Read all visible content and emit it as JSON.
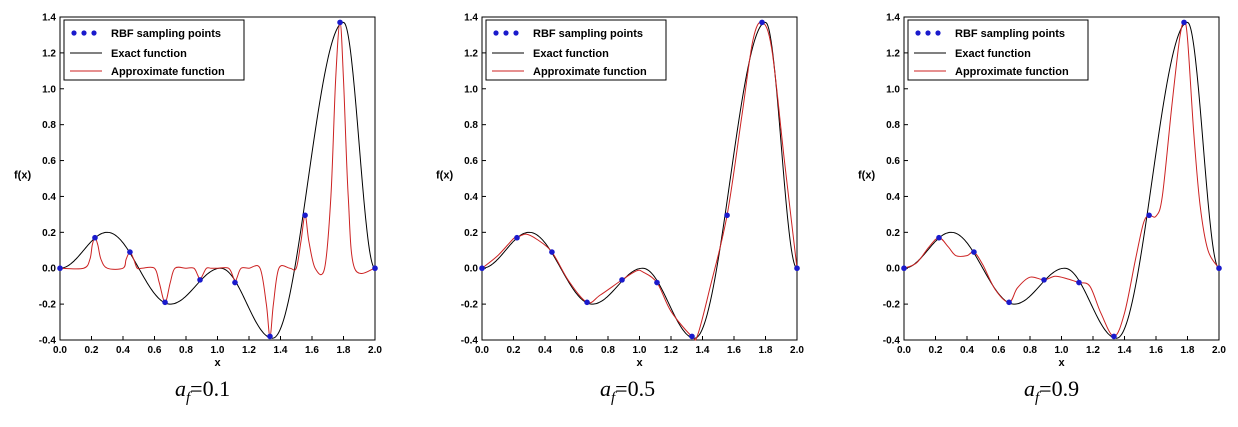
{
  "chart_data": [
    {
      "type": "line",
      "caption": {
        "symbol": "a",
        "subscript": "f",
        "value": "=0.1"
      },
      "xlabel": "x",
      "ylabel": "f(x)",
      "xlim": [
        0.0,
        2.0
      ],
      "ylim": [
        -0.4,
        1.4
      ],
      "xticks": [
        "0.0",
        "0.2",
        "0.4",
        "0.6",
        "0.8",
        "1.0",
        "1.2",
        "1.4",
        "1.6",
        "1.8",
        "2.0"
      ],
      "yticks": [
        "-0.4",
        "-0.2",
        "0.0",
        "0.2",
        "0.4",
        "0.6",
        "0.8",
        "1.0",
        "1.2",
        "1.4"
      ],
      "legend": [
        "RBF sampling points",
        "Exact function",
        "Approximate function"
      ],
      "legend_position": "top-left",
      "points": {
        "x": [
          0.0,
          0.222,
          0.444,
          0.667,
          0.889,
          1.111,
          1.333,
          1.556,
          1.778,
          2.0
        ],
        "y": [
          0.0,
          0.17,
          0.09,
          -0.19,
          -0.065,
          -0.08,
          -0.38,
          0.295,
          1.37,
          0.0
        ]
      },
      "approx": {
        "x": [
          0.0,
          0.15,
          0.19,
          0.205,
          0.222,
          0.24,
          0.26,
          0.3,
          0.4,
          0.42,
          0.444,
          0.468,
          0.49,
          0.52,
          0.6,
          0.63,
          0.667,
          0.7,
          0.73,
          0.8,
          0.85,
          0.875,
          0.889,
          0.905,
          0.93,
          0.96,
          1.0,
          1.07,
          1.1,
          1.111,
          1.125,
          1.15,
          1.2,
          1.27,
          1.31,
          1.333,
          1.355,
          1.39,
          1.46,
          1.5,
          1.53,
          1.556,
          1.58,
          1.62,
          1.68,
          1.72,
          1.75,
          1.778,
          1.8,
          1.83,
          1.87,
          2.0
        ],
        "y": [
          0.0,
          0.0,
          0.05,
          0.13,
          0.17,
          0.13,
          0.05,
          0.0,
          0.0,
          0.05,
          0.09,
          0.05,
          0.0,
          0.0,
          0.0,
          -0.08,
          -0.19,
          -0.08,
          0.0,
          0.0,
          0.0,
          -0.04,
          -0.065,
          -0.04,
          0.0,
          0.0,
          0.0,
          0.0,
          -0.05,
          -0.08,
          -0.05,
          0.0,
          0.0,
          0.0,
          -0.2,
          -0.38,
          -0.2,
          0.0,
          0.0,
          0.0,
          0.15,
          0.295,
          0.15,
          0.0,
          0.0,
          0.4,
          1.05,
          1.37,
          1.05,
          0.4,
          0.0,
          0.0
        ]
      },
      "colors": {
        "points": "#1a1acc",
        "exact": "#000000",
        "approx": "#cc2222"
      }
    },
    {
      "type": "line",
      "caption": {
        "symbol": "a",
        "subscript": "f",
        "value": "=0.5"
      },
      "xlabel": "x",
      "ylabel": "f(x)",
      "xlim": [
        0.0,
        2.0
      ],
      "ylim": [
        -0.4,
        1.4
      ],
      "xticks": [
        "0.0",
        "0.2",
        "0.4",
        "0.6",
        "0.8",
        "1.0",
        "1.2",
        "1.4",
        "1.6",
        "1.8",
        "2.0"
      ],
      "yticks": [
        "-0.4",
        "-0.2",
        "0.0",
        "0.2",
        "0.4",
        "0.6",
        "0.8",
        "1.0",
        "1.2",
        "1.4"
      ],
      "legend": [
        "RBF sampling points",
        "Exact function",
        "Approximate function"
      ],
      "legend_position": "top-left",
      "points": {
        "x": [
          0.0,
          0.222,
          0.444,
          0.667,
          0.889,
          1.111,
          1.333,
          1.556,
          1.778,
          2.0
        ],
        "y": [
          0.0,
          0.17,
          0.09,
          -0.19,
          -0.065,
          -0.08,
          -0.38,
          0.295,
          1.37,
          0.0
        ]
      },
      "approx": {
        "x": [
          0.0,
          0.1,
          0.2,
          0.222,
          0.28,
          0.35,
          0.444,
          0.55,
          0.667,
          0.75,
          0.889,
          0.98,
          1.02,
          1.111,
          1.2,
          1.333,
          1.37,
          1.45,
          1.556,
          1.65,
          1.72,
          1.778,
          1.84,
          1.92,
          2.0
        ],
        "y": [
          0.0,
          0.07,
          0.165,
          0.17,
          0.19,
          0.16,
          0.09,
          -0.07,
          -0.19,
          -0.15,
          -0.065,
          -0.015,
          -0.02,
          -0.08,
          -0.24,
          -0.38,
          -0.37,
          -0.1,
          0.295,
          0.85,
          1.27,
          1.37,
          1.22,
          0.6,
          0.0
        ]
      },
      "colors": {
        "points": "#1a1acc",
        "exact": "#000000",
        "approx": "#cc2222"
      }
    },
    {
      "type": "line",
      "caption": {
        "symbol": "a",
        "subscript": "f",
        "value": "=0.9"
      },
      "xlabel": "x",
      "ylabel": "f(x)",
      "xlim": [
        0.0,
        2.0
      ],
      "ylim": [
        -0.4,
        1.4
      ],
      "xticks": [
        "0.0",
        "0.2",
        "0.4",
        "0.6",
        "0.8",
        "1.0",
        "1.2",
        "1.4",
        "1.6",
        "1.8",
        "2.0"
      ],
      "yticks": [
        "-0.4",
        "-0.2",
        "0.0",
        "0.2",
        "0.4",
        "0.6",
        "0.8",
        "1.0",
        "1.2",
        "1.4"
      ],
      "legend": [
        "RBF sampling points",
        "Exact function",
        "Approximate function"
      ],
      "legend_position": "top-left",
      "points": {
        "x": [
          0.0,
          0.222,
          0.444,
          0.667,
          0.889,
          1.111,
          1.333,
          1.556,
          1.778,
          2.0
        ],
        "y": [
          0.0,
          0.17,
          0.09,
          -0.19,
          -0.065,
          -0.08,
          -0.38,
          0.295,
          1.37,
          0.0
        ]
      },
      "approx": {
        "x": [
          0.0,
          0.08,
          0.16,
          0.222,
          0.28,
          0.33,
          0.4,
          0.444,
          0.5,
          0.58,
          0.667,
          0.72,
          0.8,
          0.889,
          0.96,
          1.04,
          1.111,
          1.18,
          1.25,
          1.333,
          1.4,
          1.47,
          1.52,
          1.556,
          1.6,
          1.64,
          1.7,
          1.75,
          1.778,
          1.8,
          1.84,
          1.88,
          1.93,
          2.0
        ],
        "y": [
          0.0,
          0.03,
          0.12,
          0.17,
          0.12,
          0.07,
          0.07,
          0.09,
          0.02,
          -0.12,
          -0.19,
          -0.11,
          -0.05,
          -0.065,
          -0.045,
          -0.06,
          -0.08,
          -0.1,
          -0.25,
          -0.38,
          -0.25,
          0.05,
          0.25,
          0.295,
          0.29,
          0.4,
          0.9,
          1.28,
          1.37,
          1.28,
          0.75,
          0.35,
          0.1,
          0.0
        ]
      },
      "colors": {
        "points": "#1a1acc",
        "exact": "#000000",
        "approx": "#cc2222"
      }
    }
  ]
}
